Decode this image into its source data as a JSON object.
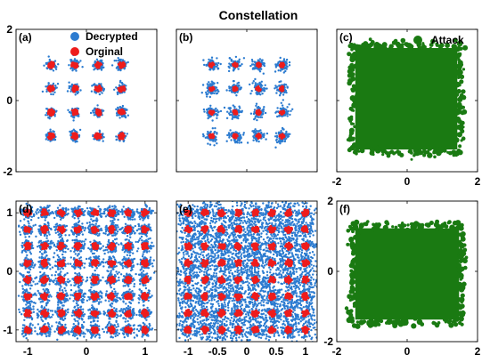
{
  "title": "Constellation",
  "colors": {
    "decrypted": "#2b7bd0",
    "original": "#ee1c1c",
    "attack": "#1a7a12"
  },
  "chart_data": [
    {
      "id": "a",
      "type": "scatter",
      "panel_label": "(a)",
      "xlim": [
        -2,
        2
      ],
      "ylim": [
        -2,
        2
      ],
      "xticks": [
        -2,
        0,
        2
      ],
      "yticks": [
        -2,
        0,
        2
      ],
      "xtick_labels": [
        "",
        "",
        ""
      ],
      "ytick_labels": [
        "-2",
        "0",
        "2"
      ],
      "legend": [
        "Decrypted",
        "Orginal"
      ],
      "legend_position": "top-right",
      "series": [
        {
          "name": "Decrypted",
          "style": "cloud",
          "color_key": "decrypted",
          "levels": [
            -1,
            -0.333,
            0.333,
            1
          ],
          "spread": 0.07
        },
        {
          "name": "Orginal",
          "style": "dot",
          "color_key": "original",
          "levels": [
            -1,
            -0.333,
            0.333,
            1
          ],
          "spread": 0.07
        }
      ]
    },
    {
      "id": "b",
      "type": "scatter",
      "panel_label": "(b)",
      "xlim": [
        -2,
        2
      ],
      "ylim": [
        -2,
        2
      ],
      "xticks": [
        -2,
        0,
        2
      ],
      "yticks": [
        -2,
        0,
        2
      ],
      "xtick_labels": [
        "",
        "",
        ""
      ],
      "ytick_labels": [
        "",
        "",
        ""
      ],
      "series": [
        {
          "name": "Decrypted",
          "style": "cloud",
          "color_key": "decrypted",
          "levels": [
            -1,
            -0.333,
            0.333,
            1
          ],
          "spread": 0.09
        },
        {
          "name": "Orginal",
          "style": "dot",
          "color_key": "original",
          "levels": [
            -1,
            -0.333,
            0.333,
            1
          ],
          "spread": 0.05
        }
      ]
    },
    {
      "id": "c",
      "type": "scatter",
      "panel_label": "(c)",
      "xlim": [
        -2,
        2
      ],
      "ylim": [
        -2,
        2
      ],
      "xticks": [
        -2,
        0,
        2
      ],
      "yticks": [
        -2,
        0,
        2
      ],
      "xtick_labels": [
        "-2",
        "0",
        "2"
      ],
      "ytick_labels": [
        "",
        "",
        ""
      ],
      "legend": [
        "Attack"
      ],
      "legend_position": "top-right",
      "series": [
        {
          "name": "Attack",
          "style": "region",
          "color_key": "attack",
          "x_range": [
            -1.55,
            1.5
          ],
          "y_range": [
            -1.45,
            1.55
          ]
        }
      ]
    },
    {
      "id": "d",
      "type": "scatter",
      "panel_label": "(d)",
      "xlim": [
        -1.2,
        1.2
      ],
      "ylim": [
        -1.2,
        1.2
      ],
      "xticks": [
        -1,
        0,
        1
      ],
      "yticks": [
        -1,
        0,
        1
      ],
      "xtick_labels": [
        "-1",
        "0",
        "1"
      ],
      "ytick_labels": [
        "-1",
        "0",
        "1"
      ],
      "series": [
        {
          "name": "Decrypted",
          "style": "cloud",
          "color_key": "decrypted",
          "levels": [
            -1,
            -0.714,
            -0.429,
            -0.143,
            0.143,
            0.429,
            0.714,
            1
          ],
          "spread": 0.055
        },
        {
          "name": "Orginal",
          "style": "dot",
          "color_key": "original",
          "levels": [
            -1,
            -0.714,
            -0.429,
            -0.143,
            0.143,
            0.429,
            0.714,
            1
          ],
          "spread": 0.045
        }
      ]
    },
    {
      "id": "e",
      "type": "scatter",
      "panel_label": "(e)",
      "xlim": [
        -1.2,
        1.2
      ],
      "ylim": [
        -1.2,
        1.2
      ],
      "xticks": [
        -1,
        -0.5,
        0,
        0.5,
        1
      ],
      "yticks": [
        -1,
        0,
        1
      ],
      "xtick_labels": [
        "-1",
        "-0.5",
        "0",
        "0.5",
        "1"
      ],
      "ytick_labels": [
        "",
        "",
        ""
      ],
      "series": [
        {
          "name": "Decrypted",
          "style": "cloud",
          "color_key": "decrypted",
          "levels": [
            -1,
            -0.714,
            -0.429,
            -0.143,
            0.143,
            0.429,
            0.714,
            1
          ],
          "spread": 0.1
        },
        {
          "name": "Orginal",
          "style": "dot",
          "color_key": "original",
          "levels": [
            -1,
            -0.714,
            -0.429,
            -0.143,
            0.143,
            0.429,
            0.714,
            1
          ],
          "spread": 0.045
        }
      ]
    },
    {
      "id": "f",
      "type": "scatter",
      "panel_label": "(f)",
      "xlim": [
        -2,
        2
      ],
      "ylim": [
        -2,
        2
      ],
      "xticks": [
        -2,
        0,
        2
      ],
      "yticks": [
        -2,
        0,
        2
      ],
      "xtick_labels": [
        "-2",
        "0",
        "2"
      ],
      "ytick_labels": [
        "-2",
        "0",
        "2"
      ],
      "series": [
        {
          "name": "Attack",
          "style": "region",
          "color_key": "attack",
          "x_range": [
            -1.55,
            1.55
          ],
          "y_range": [
            -1.45,
            1.3
          ]
        }
      ]
    }
  ]
}
